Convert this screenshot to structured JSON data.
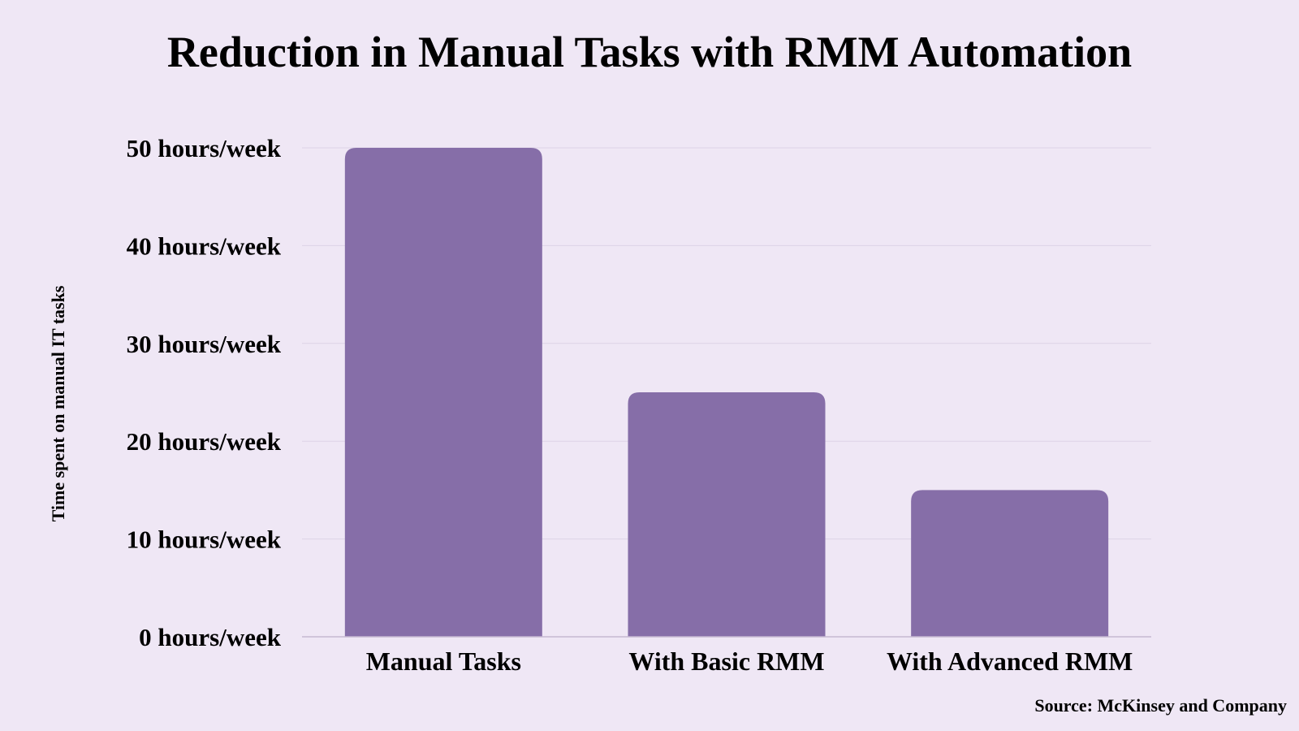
{
  "chart_data": {
    "type": "bar",
    "title": "Reduction in Manual Tasks with RMM Automation",
    "ylabel": "Time spent on manual IT tasks",
    "xlabel": "",
    "categories": [
      "Manual Tasks",
      "With Basic RMM",
      "With Advanced RMM"
    ],
    "values": [
      50,
      25,
      15
    ],
    "ylim": [
      0,
      50
    ],
    "yticks": [
      0,
      10,
      20,
      30,
      40,
      50
    ],
    "ytick_labels": [
      "0 hours/week",
      "10 hours/week",
      "20 hours/week",
      "30 hours/week",
      "40 hours/week",
      "50 hours/week"
    ],
    "grid": true,
    "legend": "none",
    "bar_color": "#866ea8",
    "background_color": "#efe7f5",
    "source": "Source: McKinsey and Company"
  }
}
